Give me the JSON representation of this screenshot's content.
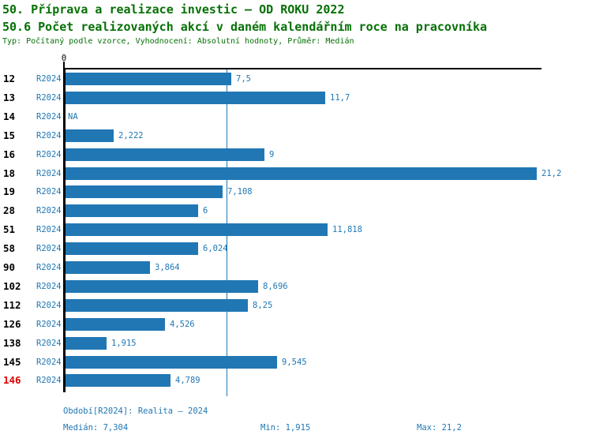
{
  "title": "50. Příprava a realizace investic – OD ROKU 2022",
  "subtitle": "50.6 Počet realizovaných akcí v daném kalendářním roce na pracovníka",
  "meta_line": "Typ: Počítaný podle vzorce, Vyhodnocení: Absolutní hodnoty, Průměr: Medián",
  "axis": {
    "zero_label": "0"
  },
  "chart_data": {
    "type": "bar",
    "orientation": "horizontal",
    "categories": [
      "12",
      "13",
      "14",
      "15",
      "16",
      "18",
      "19",
      "28",
      "51",
      "58",
      "90",
      "102",
      "112",
      "126",
      "138",
      "145",
      "146"
    ],
    "series": [
      {
        "name": "R2024",
        "values": [
          7.5,
          11.7,
          null,
          2.222,
          9,
          21.2,
          7.108,
          6,
          11.818,
          6.024,
          3.864,
          8.696,
          8.25,
          4.526,
          1.915,
          9.545,
          4.789
        ],
        "value_labels": [
          "7,5",
          "11,7",
          "NA",
          "2,222",
          "9",
          "21,2",
          "7,108",
          "6",
          "11,818",
          "6,024",
          "3,864",
          "8,696",
          "8,25",
          "4,526",
          "1,915",
          "9,545",
          "4,789"
        ]
      }
    ],
    "xlim": [
      0,
      21.2
    ],
    "x_tick_labels": [
      "0"
    ],
    "median": 7.304,
    "min": 1.915,
    "max": 21.2,
    "highlighted_category": "146",
    "grid": false,
    "legend_position": "none"
  },
  "footer": {
    "period_label": "Období[R2024]: Realita – 2024",
    "median_label": "Medián: 7,304",
    "min_label": "Min: 1,915",
    "max_label": "Max: 21,2"
  },
  "colors": {
    "bar_blue": "#2077b4",
    "text_blue": "#1f77b4",
    "title_green": "#067006",
    "highlight_red": "#dd0000",
    "axis_black": "#000000"
  }
}
